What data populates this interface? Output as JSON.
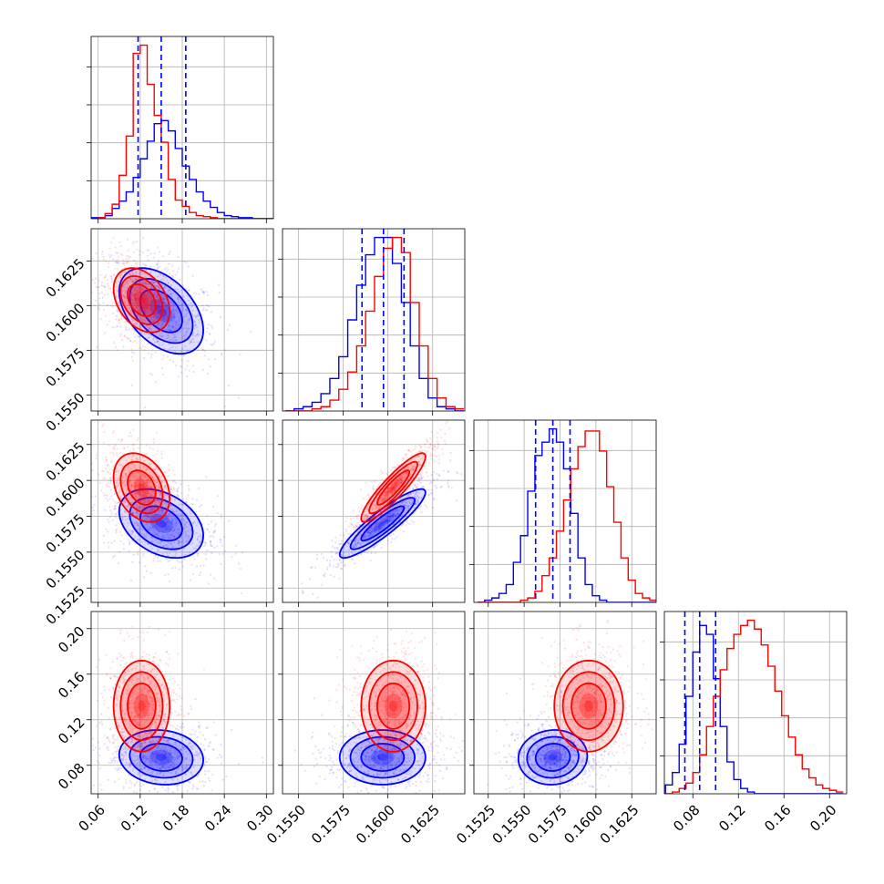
{
  "chart_data": {
    "type": "corner",
    "parameters": 4,
    "series": [
      {
        "color": "#0000ff",
        "role": "reference posterior (with quantile lines)"
      },
      {
        "color": "#ff0000",
        "role": "comparison posterior"
      }
    ],
    "grid": true,
    "axes": {
      "p1": {
        "lim": [
          0.05,
          0.31
        ],
        "ticks": [
          "0.06",
          "0.12",
          "0.18",
          "0.24",
          "0.30"
        ]
      },
      "p2": {
        "lim": [
          0.1541,
          0.1643
        ],
        "ticks": [
          "0.1550",
          "0.1575",
          "0.1600",
          "0.1625"
        ]
      },
      "p3": {
        "lim": [
          0.1515,
          0.1642
        ],
        "ticks": [
          "0.1525",
          "0.1550",
          "0.1575",
          "0.1600",
          "0.1625"
        ]
      },
      "p4": {
        "lim": [
          0.055,
          0.215
        ],
        "ticks": [
          "0.08",
          "0.12",
          "0.16",
          "0.20"
        ]
      }
    },
    "quantiles": {
      "p1": [
        0.117,
        0.15,
        0.185
      ],
      "p2": [
        0.15855,
        0.15975,
        0.1609
      ],
      "p3": [
        0.1558,
        0.157,
        0.1582
      ],
      "p4": [
        0.073,
        0.086,
        0.1
      ]
    },
    "marginals": {
      "p1": {
        "bin_centers": [
          0.055,
          0.065,
          0.075,
          0.085,
          0.095,
          0.105,
          0.115,
          0.125,
          0.135,
          0.145,
          0.155,
          0.165,
          0.175,
          0.185,
          0.195,
          0.205,
          0.215,
          0.225,
          0.235,
          0.245,
          0.255,
          0.265,
          0.275,
          0.285,
          0.295,
          0.305
        ],
        "blue": [
          1,
          1,
          3,
          10,
          17,
          26,
          40,
          58,
          75,
          92,
          95,
          85,
          68,
          51,
          38,
          26,
          17,
          11,
          6,
          3,
          2,
          1,
          1,
          0,
          0,
          0
        ],
        "red": [
          0,
          1,
          5,
          14,
          42,
          80,
          160,
          168,
          130,
          100,
          74,
          38,
          18,
          12,
          6,
          3,
          2,
          1,
          0,
          0,
          0,
          0,
          0,
          0,
          0,
          0
        ]
      },
      "p2": {
        "bin_centers": [
          0.1545,
          0.155,
          0.1555,
          0.156,
          0.1565,
          0.157,
          0.1575,
          0.158,
          0.1585,
          0.159,
          0.1595,
          0.16,
          0.1605,
          0.161,
          0.1615,
          0.162,
          0.1625,
          0.163,
          0.1635,
          0.164
        ],
        "blue": [
          0,
          1,
          2,
          4,
          8,
          15,
          25,
          42,
          58,
          72,
          80,
          80,
          68,
          50,
          30,
          15,
          6,
          2,
          1,
          0
        ],
        "red": [
          0,
          0,
          0,
          1,
          2,
          5,
          10,
          18,
          30,
          46,
          62,
          75,
          80,
          73,
          50,
          30,
          15,
          6,
          2,
          1
        ]
      },
      "p3": {
        "bin_centers": [
          0.152,
          0.1525,
          0.153,
          0.1535,
          0.154,
          0.1545,
          0.155,
          0.1555,
          0.156,
          0.1565,
          0.157,
          0.1575,
          0.158,
          0.1585,
          0.159,
          0.1595,
          0.16,
          0.1605,
          0.161,
          0.1615,
          0.162,
          0.1625,
          0.163,
          0.1635,
          0.164
        ],
        "blue": [
          0,
          1,
          2,
          4,
          8,
          18,
          30,
          50,
          66,
          72,
          78,
          72,
          60,
          40,
          20,
          8,
          3,
          1,
          0,
          0,
          0,
          0,
          0,
          0,
          0
        ],
        "red": [
          0,
          0,
          0,
          0,
          0,
          0,
          1,
          2,
          5,
          12,
          20,
          32,
          46,
          60,
          70,
          77,
          77,
          68,
          52,
          36,
          20,
          10,
          4,
          2,
          1
        ]
      },
      "p4": {
        "bin_centers": [
          0.059,
          0.065,
          0.071,
          0.077,
          0.083,
          0.089,
          0.095,
          0.101,
          0.107,
          0.113,
          0.119,
          0.125,
          0.131,
          0.137,
          0.143,
          0.149,
          0.155,
          0.161,
          0.167,
          0.173,
          0.179,
          0.185,
          0.191,
          0.197,
          0.203,
          0.209
        ],
        "blue": [
          5,
          12,
          28,
          55,
          80,
          95,
          90,
          65,
          38,
          18,
          8,
          3,
          1,
          0,
          0,
          0,
          0,
          0,
          0,
          0,
          0,
          0,
          0,
          0,
          0,
          0
        ],
        "red": [
          0,
          1,
          3,
          6,
          12,
          22,
          38,
          55,
          70,
          82,
          90,
          95,
          98,
          93,
          84,
          72,
          58,
          44,
          32,
          22,
          14,
          9,
          5,
          3,
          2,
          1
        ]
      }
    },
    "posteriors": {
      "blue": {
        "mean": [
          0.15,
          0.1597,
          0.157,
          0.087
        ],
        "sd": [
          0.03,
          0.0012,
          0.0012,
          0.012
        ]
      },
      "red": {
        "mean": [
          0.122,
          0.1603,
          0.1595,
          0.132
        ],
        "sd": [
          0.02,
          0.0009,
          0.0012,
          0.02
        ]
      }
    }
  }
}
